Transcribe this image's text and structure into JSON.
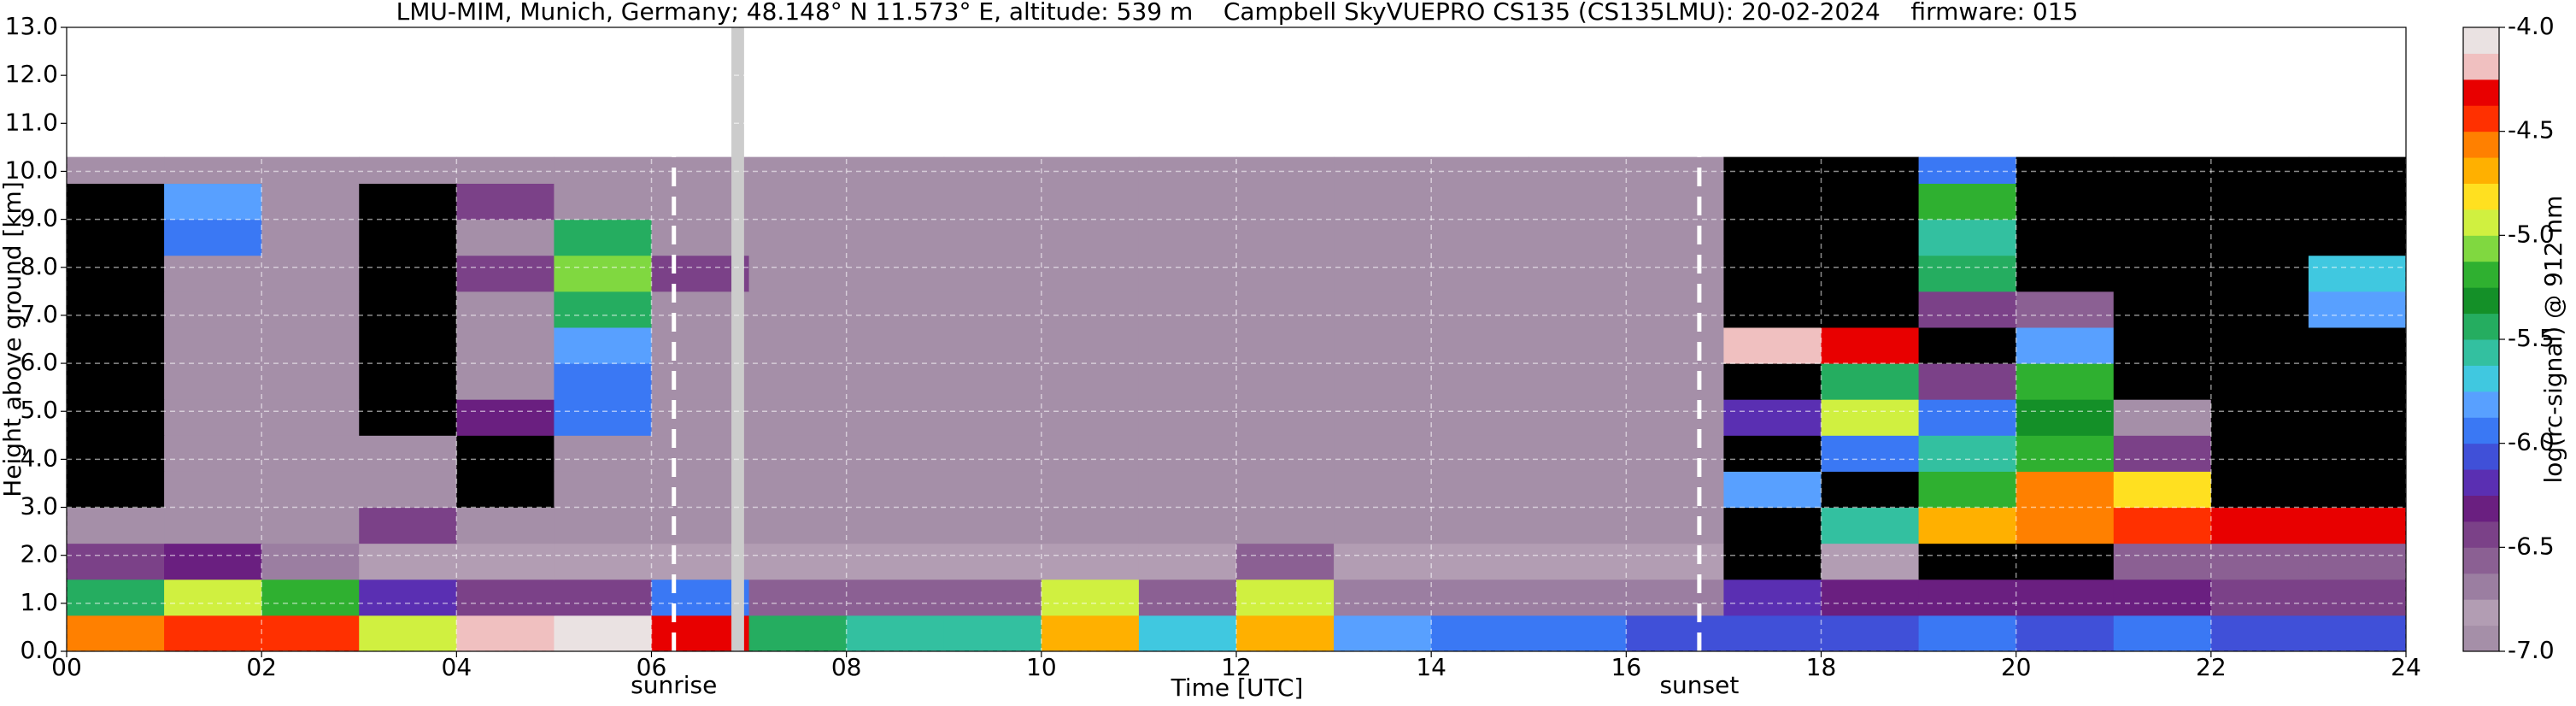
{
  "chart_data": {
    "type": "heatmap",
    "title": "LMU-MIM, Munich, Germany; 48.148° N 11.573° E, altitude: 539 m    Campbell SkyVUEPRO CS135 (CS135LMU): 20-02-2024    firmware: 015",
    "xlabel": "Time [UTC]",
    "ylabel": "Height above ground [km]",
    "colorbar_label": "log(rc-signal) @ 912 nm",
    "xlim": [
      0,
      24
    ],
    "ylim": [
      0,
      13
    ],
    "xticks": [
      {
        "value": 0,
        "label": "00"
      },
      {
        "value": 2,
        "label": "02"
      },
      {
        "value": 4,
        "label": "04"
      },
      {
        "value": 6,
        "label": "06"
      },
      {
        "value": 8,
        "label": "08"
      },
      {
        "value": 10,
        "label": "10"
      },
      {
        "value": 12,
        "label": "12"
      },
      {
        "value": 14,
        "label": "14"
      },
      {
        "value": 16,
        "label": "16"
      },
      {
        "value": 18,
        "label": "18"
      },
      {
        "value": 20,
        "label": "20"
      },
      {
        "value": 22,
        "label": "22"
      },
      {
        "value": 24,
        "label": "24"
      }
    ],
    "yticks": [
      {
        "value": 0,
        "label": "0.0"
      },
      {
        "value": 1,
        "label": "1.0"
      },
      {
        "value": 2,
        "label": "2.0"
      },
      {
        "value": 3,
        "label": "3.0"
      },
      {
        "value": 4,
        "label": "4.0"
      },
      {
        "value": 5,
        "label": "5.0"
      },
      {
        "value": 6,
        "label": "6.0"
      },
      {
        "value": 7,
        "label": "7.0"
      },
      {
        "value": 8,
        "label": "8.0"
      },
      {
        "value": 9,
        "label": "9.0"
      },
      {
        "value": 10,
        "label": "10.0"
      },
      {
        "value": 11,
        "label": "11.0"
      },
      {
        "value": 12,
        "label": "12.0"
      },
      {
        "value": 13,
        "label": "13.0"
      }
    ],
    "grid": true,
    "clim": [
      -7,
      -4
    ],
    "cticks": [
      {
        "value": -7,
        "label": "-7.0"
      },
      {
        "value": -6.5,
        "label": "-6.5"
      },
      {
        "value": -6,
        "label": "-6.0"
      },
      {
        "value": -5.5,
        "label": "-5.5"
      },
      {
        "value": -5,
        "label": "-5.0"
      },
      {
        "value": -4.5,
        "label": "-4.5"
      },
      {
        "value": -4,
        "label": "-4.0"
      }
    ],
    "colorscale": [
      "#a58fa8",
      "#b29db3",
      "#9b7ea1",
      "#8b6093",
      "#7b4188",
      "#6a1f80",
      "#5a2fb2",
      "#4050d8",
      "#3a78f4",
      "#58a0ff",
      "#40c8e0",
      "#33c0a0",
      "#25ad60",
      "#149028",
      "#2fb030",
      "#80d840",
      "#d0f040",
      "#ffe020",
      "#ffb000",
      "#ff8000",
      "#ff3000",
      "#e80000",
      "#f0c0c0",
      "#eae2e2"
    ],
    "under_color": "#000000",
    "x_edges": [
      0,
      1,
      2,
      3,
      4,
      5,
      6,
      7,
      8,
      9,
      10,
      11,
      12,
      13,
      14,
      15,
      16,
      17,
      18,
      19,
      20,
      21,
      22,
      23,
      24
    ],
    "y_edges": [
      0,
      0.75,
      1.5,
      2.25,
      3,
      3.75,
      4.5,
      5.25,
      6,
      6.75,
      7.5,
      8.25,
      9,
      9.75,
      10.3
    ],
    "z": [
      [
        -4.6,
        -4.5,
        -4.4,
        -5.0,
        -4.2,
        -4.1,
        -4.3,
        -5.4,
        -5.6,
        -5.6,
        -4.7,
        -5.7,
        -4.7,
        -5.8,
        -6.0,
        -6.0,
        -6.1,
        -6.1,
        -6.1,
        -6.0,
        -6.1,
        -6.0,
        -6.1,
        -6.1
      ],
      [
        -5.5,
        -5.0,
        -5.2,
        -6.2,
        -6.4,
        -6.4,
        -6.0,
        -6.6,
        -6.6,
        -6.6,
        -5.0,
        -6.6,
        -5.0,
        -6.7,
        -6.7,
        -6.7,
        -6.7,
        -6.2,
        -6.3,
        -6.3,
        -6.3,
        -6.3,
        -6.4,
        -6.4
      ],
      [
        -6.4,
        -6.3,
        -6.7,
        -6.8,
        -6.8,
        -6.8,
        -6.8,
        -6.8,
        -6.8,
        -6.8,
        -6.8,
        -6.8,
        -6.6,
        -6.8,
        -6.8,
        -6.8,
        -6.8,
        -7.5,
        -6.8,
        -7.5,
        -7.5,
        -6.6,
        -6.6,
        -6.6
      ],
      [
        -6.9,
        -6.9,
        -6.9,
        -6.5,
        -6.9,
        -6.9,
        -6.9,
        -6.9,
        -6.9,
        -6.9,
        -6.9,
        -6.9,
        -6.9,
        -6.9,
        -6.9,
        -6.9,
        -6.9,
        -7.5,
        -5.6,
        -4.7,
        -4.6,
        -4.4,
        -4.3,
        -4.3
      ],
      [
        -7.2,
        -6.9,
        -6.9,
        -6.9,
        -7.2,
        -6.9,
        -6.9,
        -6.9,
        -6.9,
        -6.9,
        -6.9,
        -6.9,
        -6.9,
        -6.9,
        -6.9,
        -6.9,
        -6.9,
        -5.8,
        -7.5,
        -5.2,
        -4.6,
        -4.8,
        -7.5,
        -7.5
      ],
      [
        -7.2,
        -6.9,
        -6.9,
        -6.9,
        -7.2,
        -6.9,
        -6.9,
        -6.9,
        -6.9,
        -6.9,
        -6.9,
        -6.9,
        -6.9,
        -6.9,
        -6.9,
        -6.9,
        -6.9,
        -7.5,
        -6.0,
        -5.6,
        -5.2,
        -6.5,
        -7.5,
        -7.5
      ],
      [
        -7.2,
        -6.9,
        -6.9,
        -7.2,
        -6.3,
        -6.0,
        -6.9,
        -6.9,
        -6.9,
        -6.9,
        -6.9,
        -6.9,
        -6.9,
        -6.9,
        -6.9,
        -6.9,
        -6.9,
        -6.2,
        -5.0,
        -6.0,
        -5.3,
        -7.0,
        -7.5,
        -7.5
      ],
      [
        -7.2,
        -6.9,
        -6.9,
        -7.2,
        -6.9,
        -6.0,
        -6.9,
        -6.9,
        -6.9,
        -6.9,
        -6.9,
        -6.9,
        -6.9,
        -6.9,
        -6.9,
        -6.9,
        -6.9,
        -7.5,
        -5.4,
        -6.5,
        -5.2,
        -7.5,
        -7.5,
        -7.5
      ],
      [
        -7.2,
        -6.9,
        -6.9,
        -7.2,
        -6.9,
        -5.8,
        -6.9,
        -6.9,
        -6.9,
        -6.9,
        -6.9,
        -6.9,
        -6.9,
        -6.9,
        -6.9,
        -6.9,
        -6.9,
        -4.2,
        -4.3,
        -7.5,
        -5.8,
        -7.5,
        -7.5,
        -7.5
      ],
      [
        -7.2,
        -6.9,
        -6.9,
        -7.2,
        -6.9,
        -5.5,
        -6.9,
        -6.9,
        -6.9,
        -6.9,
        -6.9,
        -6.9,
        -6.9,
        -6.9,
        -6.9,
        -6.9,
        -6.9,
        -7.5,
        -7.5,
        -6.5,
        -6.6,
        -7.5,
        -7.5,
        -5.8
      ],
      [
        -7.2,
        -6.9,
        -6.9,
        -7.2,
        -6.4,
        -5.1,
        -6.5,
        -6.9,
        -6.9,
        -6.9,
        -6.9,
        -6.9,
        -6.9,
        -6.9,
        -6.9,
        -6.9,
        -6.9,
        -7.5,
        -7.5,
        -5.4,
        -7.5,
        -7.5,
        -7.5,
        -5.7
      ],
      [
        -7.2,
        -6.0,
        -6.9,
        -7.2,
        -6.9,
        -5.4,
        -6.9,
        -6.9,
        -6.9,
        -6.9,
        -6.9,
        -6.9,
        -6.9,
        -6.9,
        -6.9,
        -6.9,
        -6.9,
        -7.5,
        -7.5,
        -5.6,
        -7.5,
        -7.5,
        -7.5,
        -7.5
      ],
      [
        -7.2,
        -5.8,
        -6.9,
        -7.2,
        -6.5,
        -6.9,
        -6.9,
        -6.9,
        -6.9,
        -6.9,
        -6.9,
        -6.9,
        -6.9,
        -6.9,
        -6.9,
        -6.9,
        -6.9,
        -7.5,
        -7.5,
        -5.2,
        -7.5,
        -7.5,
        -7.5,
        -7.5
      ],
      [
        -6.9,
        -6.9,
        -6.9,
        -6.9,
        -6.9,
        -6.9,
        -6.9,
        -6.9,
        -6.9,
        -6.9,
        -6.9,
        -6.9,
        -6.9,
        -6.9,
        -6.9,
        -6.9,
        -6.9,
        -7.5,
        -7.5,
        -6.0,
        -7.5,
        -7.5,
        -7.5,
        -7.5
      ]
    ],
    "gaps": [
      {
        "x0": 6.82,
        "x1": 6.95
      }
    ],
    "gap_color": "#cccccc",
    "annotations": [
      {
        "text": "sunrise",
        "x": 6.23
      },
      {
        "text": "sunset",
        "x": 16.75
      }
    ]
  }
}
